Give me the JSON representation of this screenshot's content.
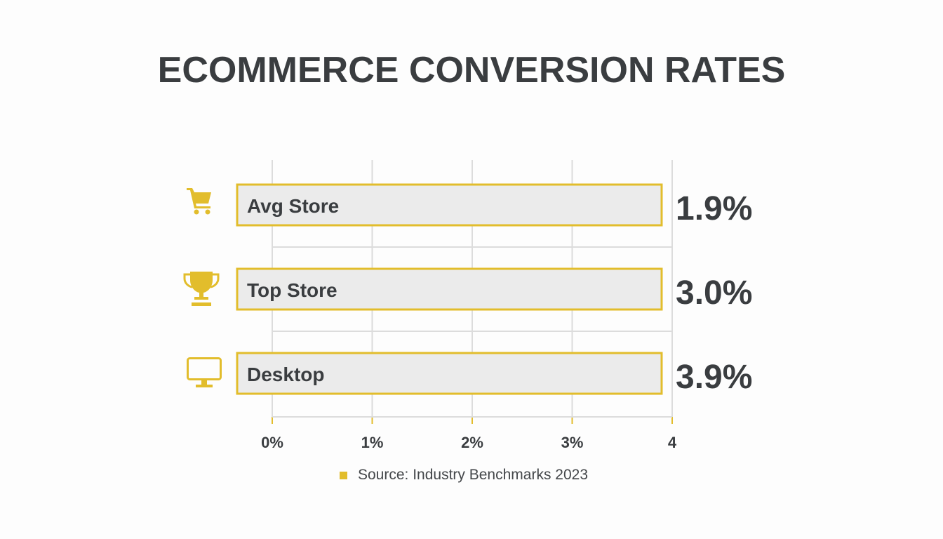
{
  "chart_data": {
    "type": "bar",
    "orientation": "horizontal",
    "title": "ECOMMERCE CONVERSION RATES",
    "categories": [
      "Avg Store",
      "Top Store",
      "Desktop"
    ],
    "values": [
      1.9,
      3.0,
      3.9
    ],
    "value_labels": [
      "1.9%",
      "3.0%",
      "3.9%"
    ],
    "icons": [
      "shopping-cart-icon",
      "trophy-icon",
      "monitor-icon"
    ],
    "xlim": [
      0,
      4
    ],
    "xticks": [
      0,
      1,
      2,
      3,
      4
    ],
    "xtick_labels": [
      "0%",
      "1%",
      "2%",
      "3%",
      "4"
    ],
    "grid": true,
    "colors": {
      "accent": "#e2bd2c",
      "bar_fill": "#ebebeb",
      "text": "#3a3d40",
      "grid": "#dcdcdc"
    },
    "source": "Source: Industry Benchmarks 2023"
  }
}
